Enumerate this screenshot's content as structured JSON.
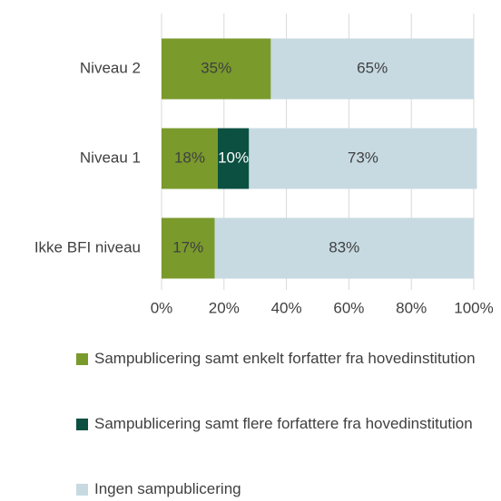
{
  "chart_data": {
    "type": "stacked_barh",
    "categories": [
      "Niveau 2",
      "Niveau 1",
      "Ikke BFI niveau"
    ],
    "series": [
      {
        "name": "Sampublicering samt enkelt forfatter fra hovedinstitution",
        "color": "#7a9a2c",
        "values": [
          35,
          18,
          17
        ],
        "value_labels": [
          "35%",
          "18%",
          "17%"
        ]
      },
      {
        "name": "Sampublicering samt flere forfattere fra hovedinstitution",
        "color": "#0b5040",
        "values": [
          null,
          10,
          null
        ],
        "value_labels": [
          null,
          "10%",
          null
        ]
      },
      {
        "name": "Ingen sampublicering",
        "color": "#c7dae2",
        "values": [
          65,
          73,
          83
        ],
        "value_labels": [
          "65%",
          "73%",
          "83%"
        ]
      }
    ],
    "xlim": [
      0,
      100
    ],
    "xticks": [
      {
        "value": 0,
        "label": "0%"
      },
      {
        "value": 20,
        "label": "20%"
      },
      {
        "value": 40,
        "label": "40%"
      },
      {
        "value": 60,
        "label": "60%"
      },
      {
        "value": 80,
        "label": "80%"
      },
      {
        "value": 100,
        "label": "100%"
      }
    ],
    "grid": true
  }
}
